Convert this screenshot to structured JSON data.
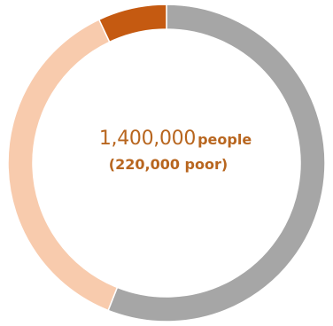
{
  "chart_data": {
    "type": "pie",
    "style": "donut",
    "categories": [
      "",
      "",
      ""
    ],
    "values": [
      56,
      37,
      7
    ],
    "colors": [
      "#a6a6a6",
      "#f8cbad",
      "#c55a11"
    ],
    "start_at": "top",
    "direction": "clockwise",
    "center_label": {
      "total_value": "1,400,000",
      "total_unit": "people",
      "subtotal_text": "(220,000 poor)"
    }
  }
}
